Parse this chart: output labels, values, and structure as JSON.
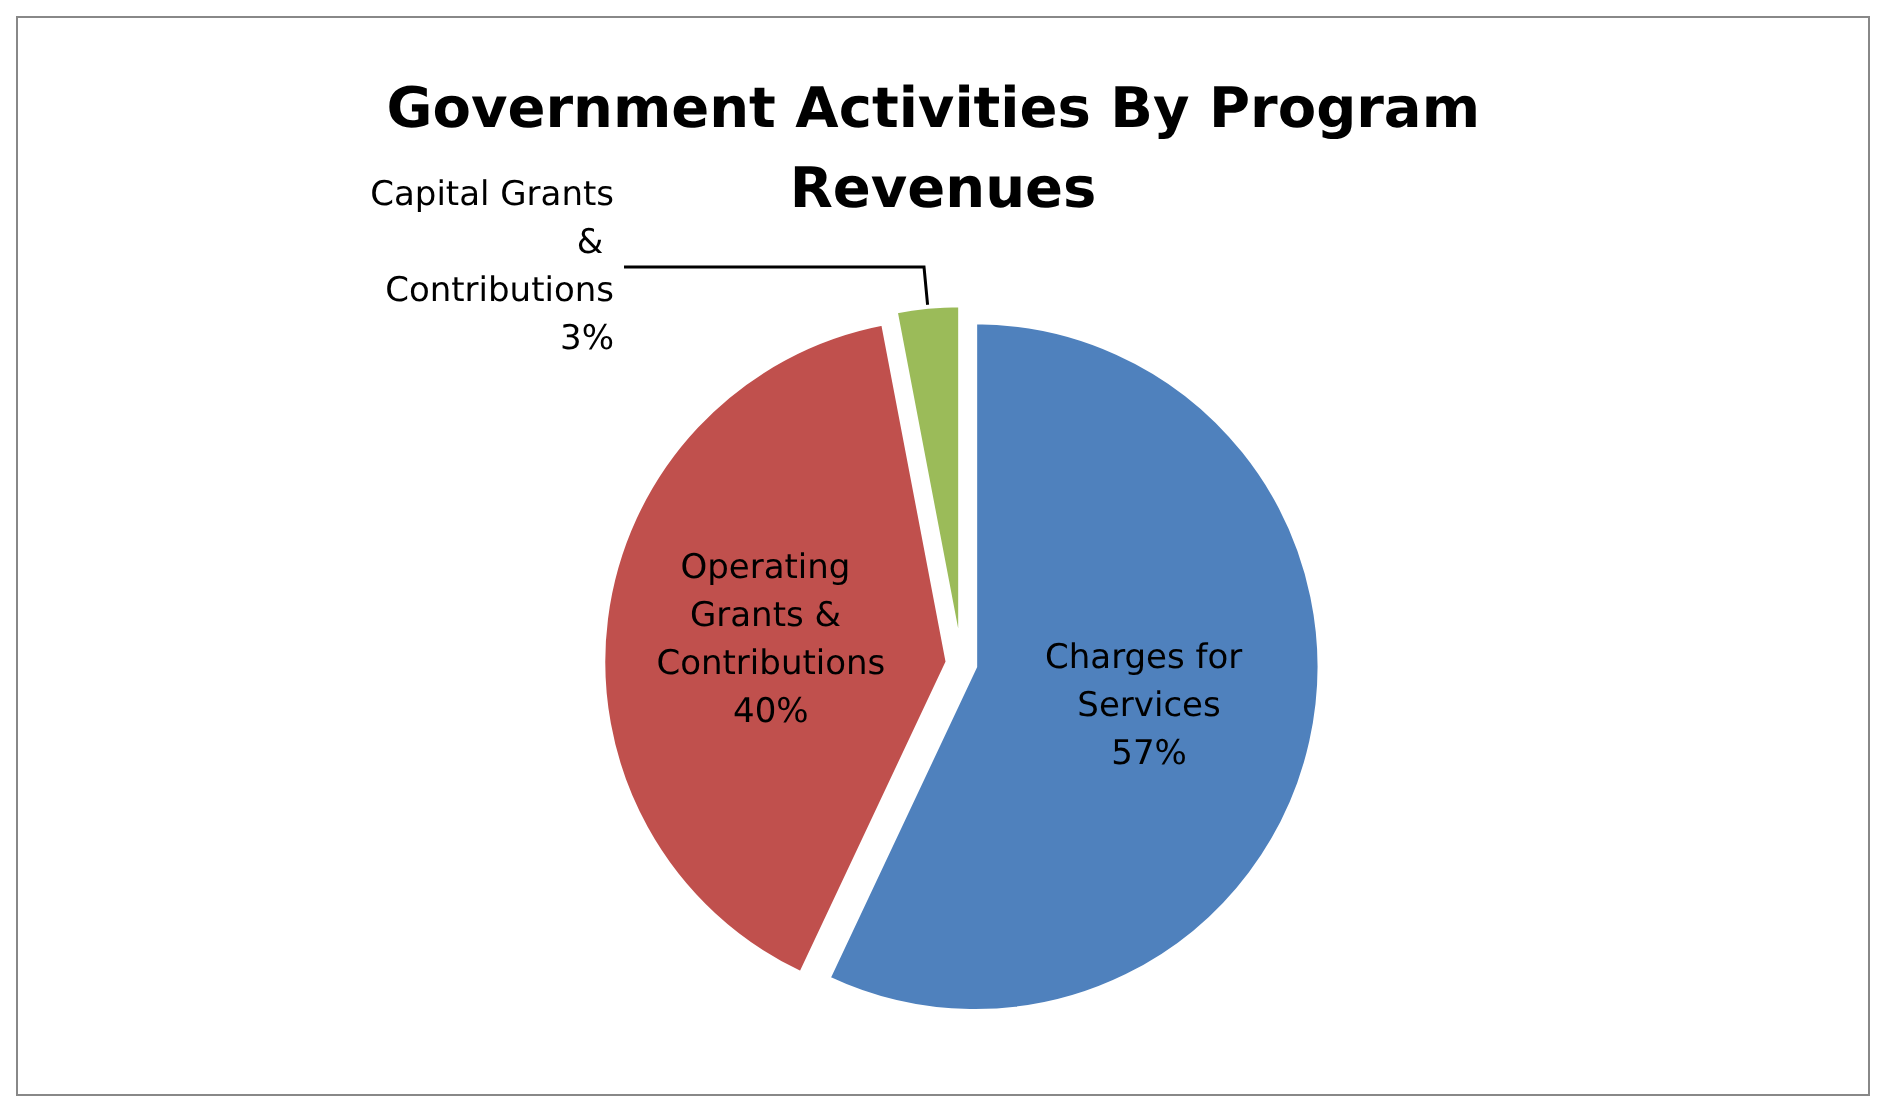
{
  "chart_data": {
    "type": "pie",
    "title": "Government Activities By Program Revenues",
    "categories": [
      "Charges for Services",
      "Operating Grants & Contributions",
      "Capital Grants & Contributions"
    ],
    "values": [
      57,
      40,
      3
    ],
    "colors": [
      "#4f81bd",
      "#c0504d",
      "#9bbb59"
    ],
    "value_labels": [
      "57%",
      "40%",
      "3%"
    ]
  }
}
